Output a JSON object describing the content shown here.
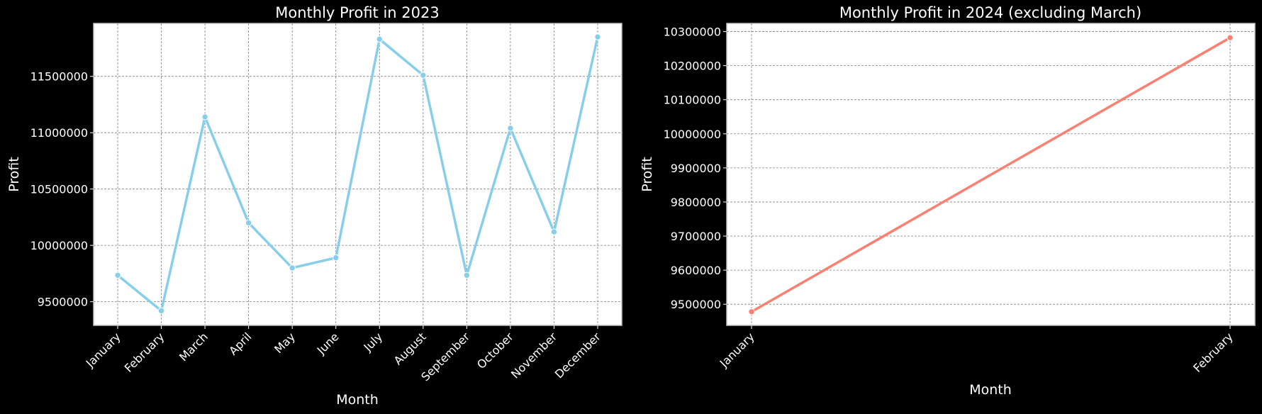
{
  "chart_data": [
    {
      "type": "line",
      "title": "Monthly Profit in 2023",
      "xlabel": "Month",
      "ylabel": "Profit",
      "categories": [
        "January",
        "February",
        "March",
        "April",
        "May",
        "June",
        "July",
        "August",
        "September",
        "October",
        "November",
        "December"
      ],
      "series": [
        {
          "values": [
            9735000,
            9420000,
            11140000,
            10200000,
            9800000,
            9890000,
            11830000,
            11510000,
            9735000,
            11040000,
            10120000,
            11850000
          ],
          "color": "#87ceeb"
        }
      ],
      "ylim": [
        9290000,
        11970000
      ],
      "yticks": [
        9500000,
        10000000,
        10500000,
        11000000,
        11500000
      ],
      "ytick_labels": [
        "9500000",
        "10000000",
        "10500000",
        "11000000",
        "11500000"
      ],
      "grid": true
    },
    {
      "type": "line",
      "title": "Monthly Profit in 2024 (excluding March)",
      "xlabel": "Month",
      "ylabel": "Profit",
      "categories": [
        "January",
        "February"
      ],
      "series": [
        {
          "values": [
            9478000,
            10282000
          ],
          "color": "#fa8072"
        }
      ],
      "ylim": [
        9438000,
        10324000
      ],
      "yticks": [
        9500000,
        9600000,
        9700000,
        9800000,
        9900000,
        10000000,
        10100000,
        10200000,
        10300000
      ],
      "ytick_labels": [
        "9500000",
        "9600000",
        "9700000",
        "9800000",
        "9900000",
        "10000000",
        "10100000",
        "10200000",
        "10300000"
      ],
      "grid": true
    }
  ]
}
